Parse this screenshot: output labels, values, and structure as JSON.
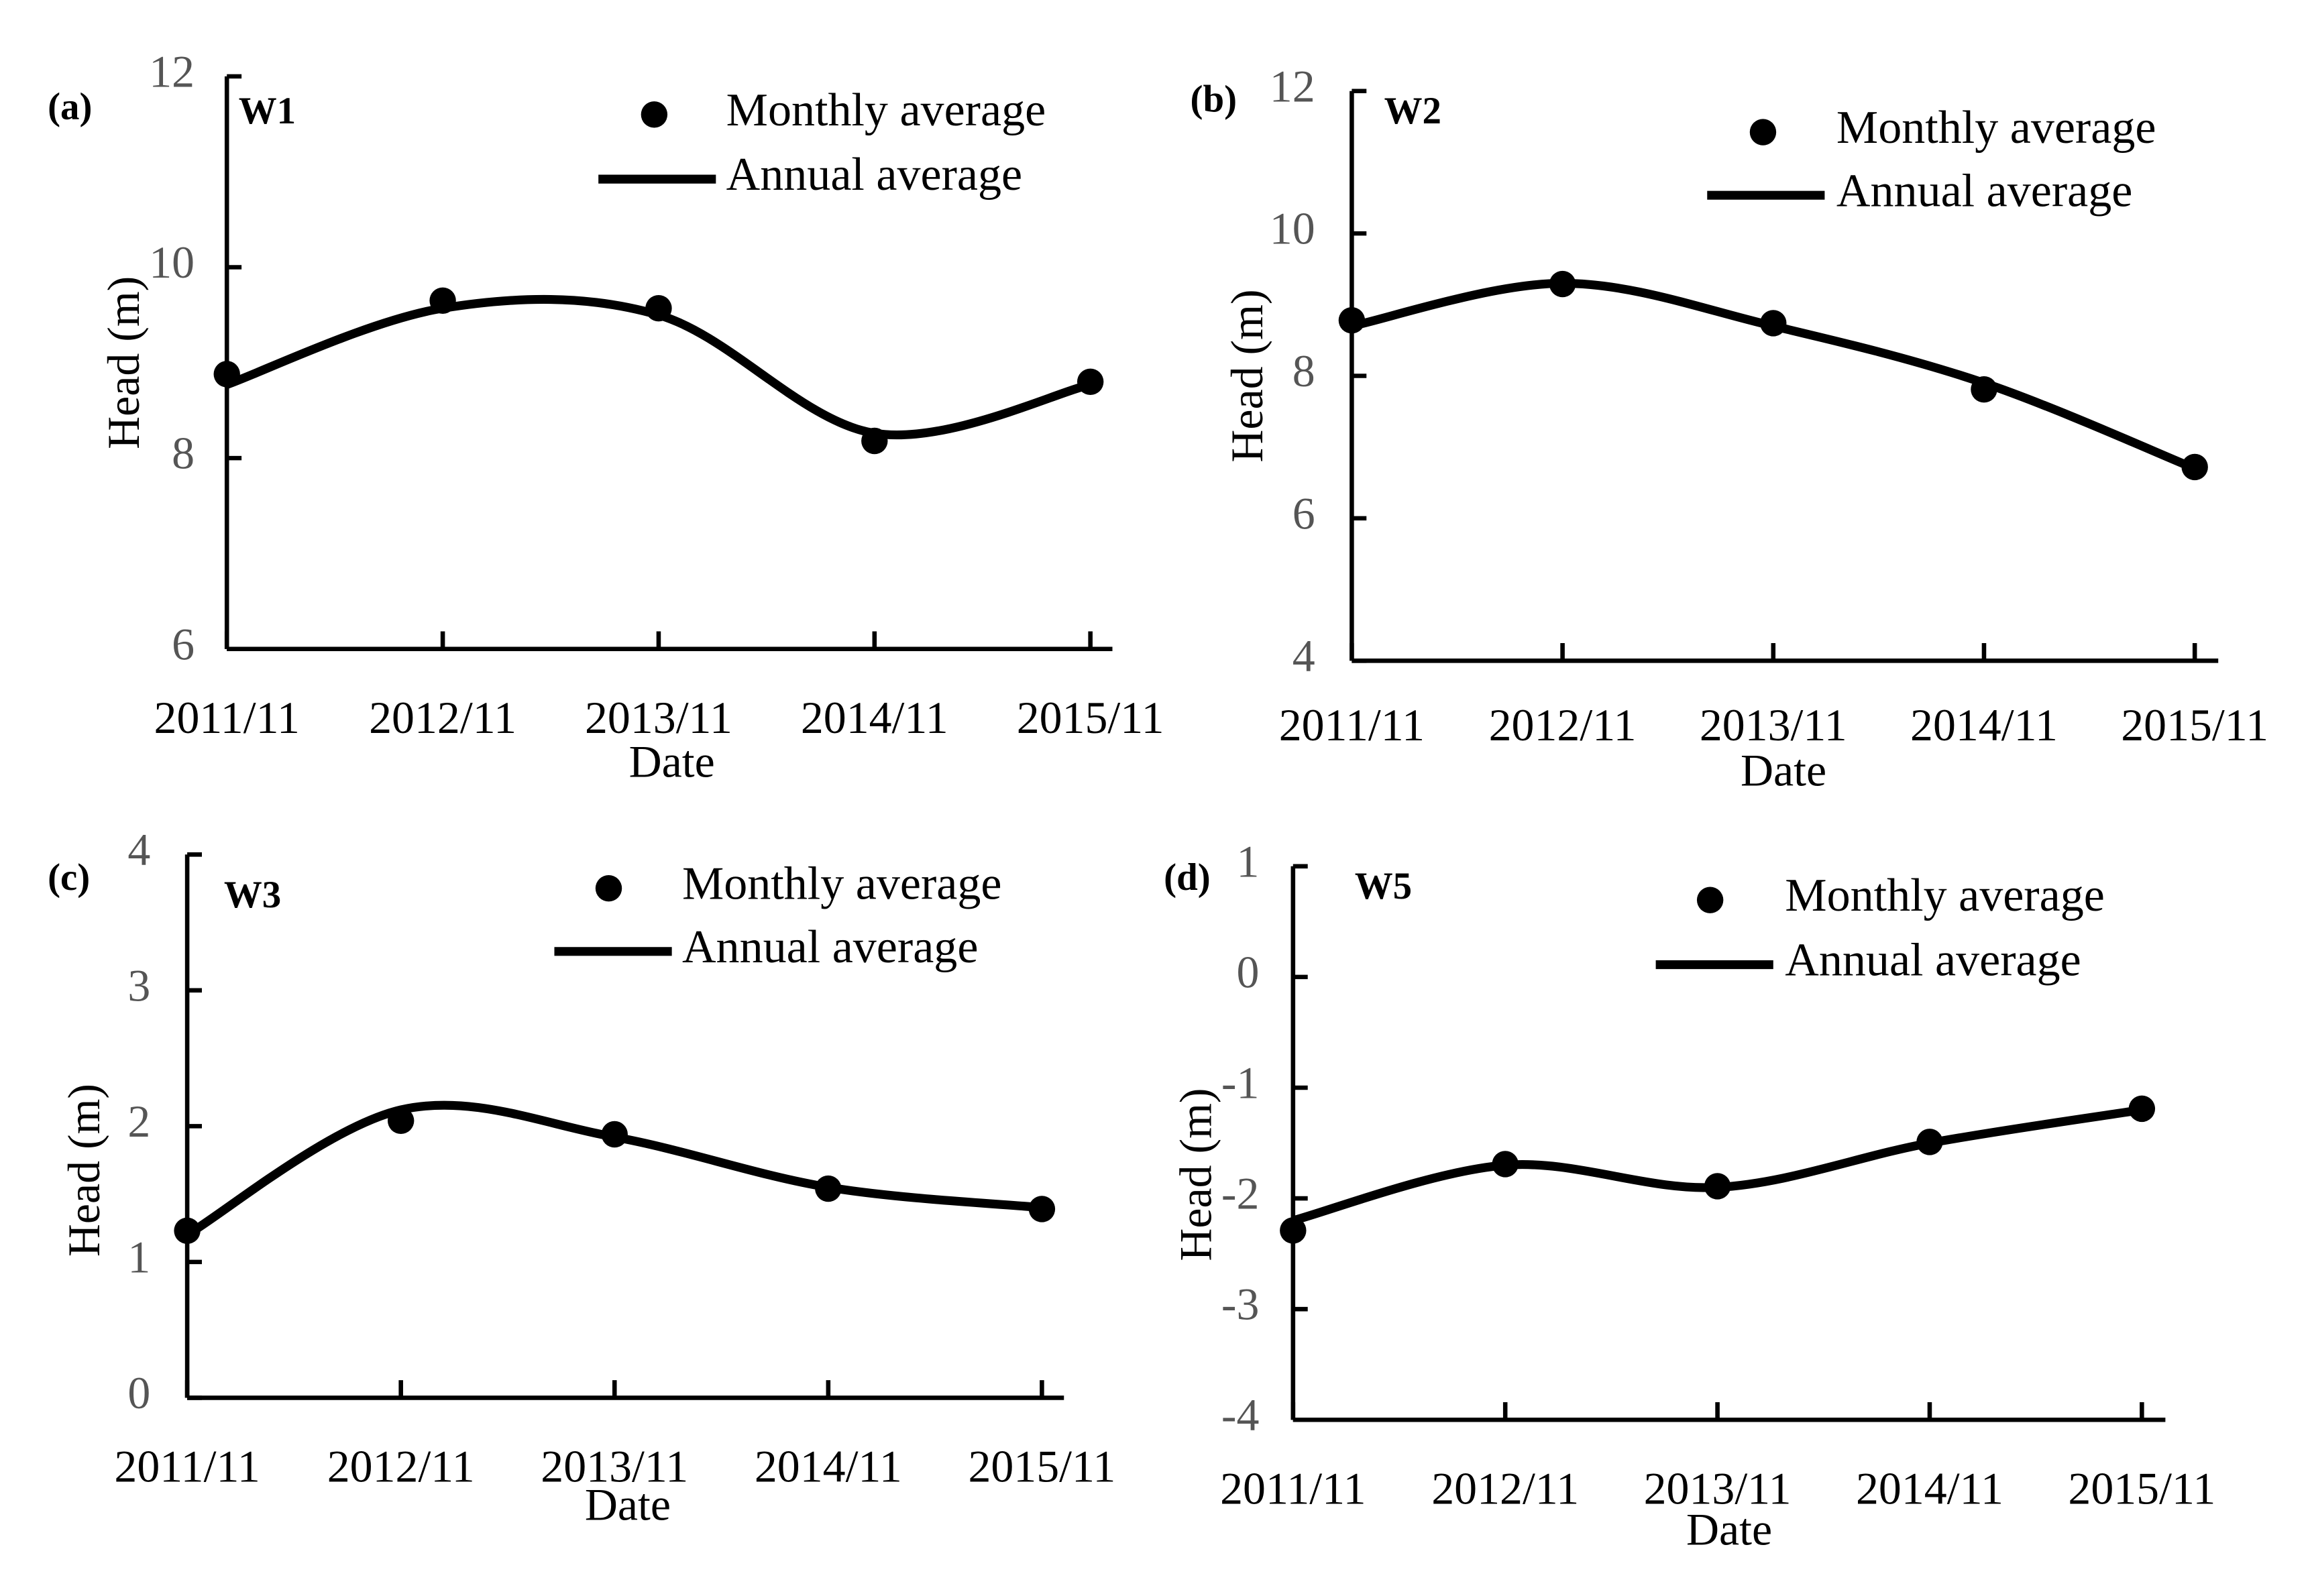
{
  "chart_data": [
    {
      "type": "line",
      "panel": "(a)",
      "title": "W1",
      "xlabel": "Date",
      "ylabel": "Head (m)",
      "categories": [
        "2011/11",
        "2012/11",
        "2013/11",
        "2014/11",
        "2015/11"
      ],
      "ylim": [
        6,
        12
      ],
      "yticks": [
        6,
        8,
        10,
        12
      ],
      "series": [
        {
          "name": "Monthly average",
          "color": "#000000",
          "marker": "circle",
          "values": [
            8.88,
            9.65,
            9.57,
            8.18,
            8.8
          ]
        },
        {
          "name": "Annual average",
          "color": "#000000",
          "marker": "none",
          "values": [
            8.77,
            9.57,
            9.5,
            8.26,
            8.77
          ]
        }
      ]
    },
    {
      "type": "line",
      "panel": "(b)",
      "title": "W2",
      "xlabel": "Date",
      "ylabel": "Head (m)",
      "categories": [
        "2011/11",
        "2012/11",
        "2013/11",
        "2014/11",
        "2015/11"
      ],
      "ylim": [
        4,
        12
      ],
      "yticks": [
        4,
        6,
        8,
        10,
        12
      ],
      "series": [
        {
          "name": "Monthly average",
          "color": "#000000",
          "marker": "circle",
          "values": [
            8.78,
            9.29,
            8.74,
            7.81,
            6.72
          ]
        },
        {
          "name": "Annual average",
          "color": "#000000",
          "marker": "none",
          "values": [
            8.7,
            9.3,
            8.7,
            7.9,
            6.7
          ]
        }
      ]
    },
    {
      "type": "line",
      "panel": "(c)",
      "title": "W3",
      "xlabel": "Date",
      "ylabel": "Head (m)",
      "categories": [
        "2011/11",
        "2012/11",
        "2013/11",
        "2014/11",
        "2015/11"
      ],
      "ylim": [
        0,
        4
      ],
      "yticks": [
        0,
        1,
        2,
        3,
        4
      ],
      "series": [
        {
          "name": "Monthly average",
          "color": "#000000",
          "marker": "circle",
          "values": [
            1.23,
            2.04,
            1.94,
            1.54,
            1.39
          ]
        },
        {
          "name": "Annual average",
          "color": "#000000",
          "marker": "none",
          "values": [
            1.2,
            2.12,
            1.92,
            1.55,
            1.4
          ]
        }
      ]
    },
    {
      "type": "line",
      "panel": "(d)",
      "title": "W5",
      "xlabel": "Date",
      "ylabel": "Head (m)",
      "categories": [
        "2011/11",
        "2012/11",
        "2013/11",
        "2014/11",
        "2015/11"
      ],
      "ylim": [
        -4,
        1
      ],
      "yticks": [
        -4,
        -3,
        -2,
        -1,
        0,
        1
      ],
      "series": [
        {
          "name": "Monthly average",
          "color": "#000000",
          "marker": "circle",
          "values": [
            -2.29,
            -1.69,
            -1.89,
            -1.49,
            -1.19
          ]
        },
        {
          "name": "Annual average",
          "color": "#000000",
          "marker": "none",
          "values": [
            -2.2,
            -1.7,
            -1.9,
            -1.5,
            -1.2
          ]
        }
      ]
    }
  ]
}
